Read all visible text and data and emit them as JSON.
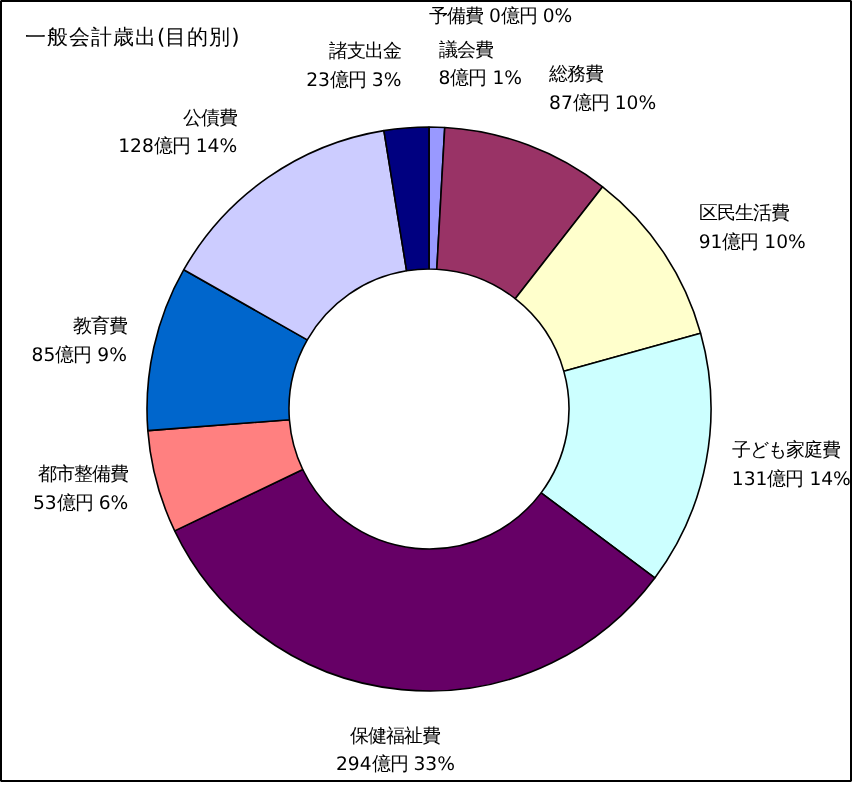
{
  "chart_data": {
    "type": "donut",
    "title": "一般会計歳出(目的別)",
    "categories": [
      "予備費",
      "議会費",
      "総務費",
      "区民生活費",
      "子ども家庭費",
      "保健福祉費",
      "都市整備費",
      "教育費",
      "公債費",
      "諸支出金"
    ],
    "values": [
      0,
      8,
      87,
      91,
      131,
      294,
      53,
      85,
      128,
      23
    ],
    "value_labels": [
      "0億円 0%",
      "8億円 1%",
      "87億円 10%",
      "91億円 10%",
      "131億円 14%",
      "294億円 33%",
      "53億円 6%",
      "85億円 9%",
      "128億円 14%",
      "23億円 3%"
    ],
    "colors": [
      "#ff00ff",
      "#9999ff",
      "#993366",
      "#ffffcc",
      "#ccffff",
      "#660066",
      "#ff8080",
      "#0066cc",
      "#ccccff",
      "#000080"
    ],
    "legend": false
  }
}
